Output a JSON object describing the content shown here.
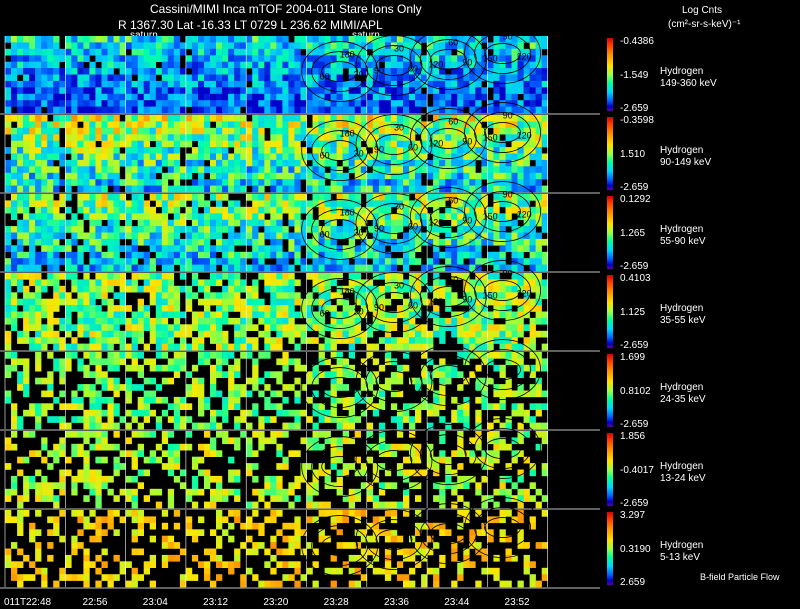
{
  "chart_data": {
    "type": "heatmap",
    "title": "Cassini/MIMI Inca mTOF  2004-011    Stare    Ions Only",
    "subtitle": "R       1367.30 Lat -16.33 LT 0729 L          236.62  MIMI/APL",
    "colorbar_title": "Log Cnts",
    "colorbar_unit": "(cm²-sr-s-keV)⁻¹",
    "time_labels": [
      "011T22:48",
      "22:56",
      "23:04",
      "23:12",
      "23:20",
      "23:28",
      "23:36",
      "23:44",
      "23:52"
    ],
    "annotations": [
      "saturn",
      "saturn"
    ],
    "footnote": "B-field Particle Flow",
    "rows": [
      {
        "species": "Hydrogen",
        "energy": "149-360 keV",
        "cmax": "-0.4386",
        "cmid": "-1.549",
        "cmin": "-2.659"
      },
      {
        "species": "Hydrogen",
        "energy": "90-149 keV",
        "cmax": "-0.3598",
        "cmid": "1.510",
        "cmin": "-2.659"
      },
      {
        "species": "Hydrogen",
        "energy": "55-90 keV",
        "cmax": "0.1292",
        "cmid": "1.265",
        "cmin": "-2.659"
      },
      {
        "species": "Hydrogen",
        "energy": "35-55 keV",
        "cmax": "0.4103",
        "cmid": "1.125",
        "cmin": "-2.659"
      },
      {
        "species": "Hydrogen",
        "energy": "24-35 keV",
        "cmax": "1.699",
        "cmid": "0.8102",
        "cmin": "-2.659"
      },
      {
        "species": "Hydrogen",
        "energy": "13-24 keV",
        "cmax": "1.856",
        "cmid": "-0.4017",
        "cmin": "-2.659"
      },
      {
        "species": "Hydrogen",
        "energy": "5-13 keV",
        "cmax": "3.297",
        "cmid": "0.3190",
        "cmin": "2.659"
      }
    ],
    "contour_labels": [
      "30",
      "60",
      "90",
      "120",
      "150",
      "180"
    ]
  }
}
